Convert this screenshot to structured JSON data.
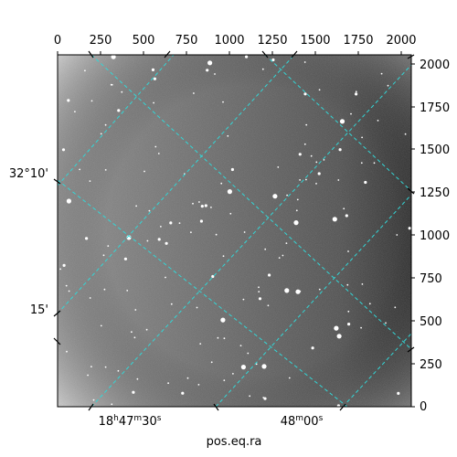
{
  "figure": {
    "xlabel": "pos.eq.ra",
    "top_ticks": [
      "0",
      "250",
      "500",
      "750",
      "1000",
      "1250",
      "1500",
      "1750",
      "2000"
    ],
    "right_ticks": [
      "0",
      "250",
      "500",
      "750",
      "1000",
      "1250",
      "1500",
      "1750",
      "2000"
    ],
    "bottom_ticks": [
      {
        "hours": "18",
        "minutes": "47",
        "seconds": "30"
      },
      {
        "minutes": "48",
        "seconds": "00"
      }
    ],
    "left_ticks": [
      "32°10'",
      "15'"
    ],
    "colors": {
      "grid": "#33d6d6",
      "image_dark": "#2a2a2a",
      "image_light": "#d0d0d0",
      "stars": "#ffffff"
    }
  }
}
